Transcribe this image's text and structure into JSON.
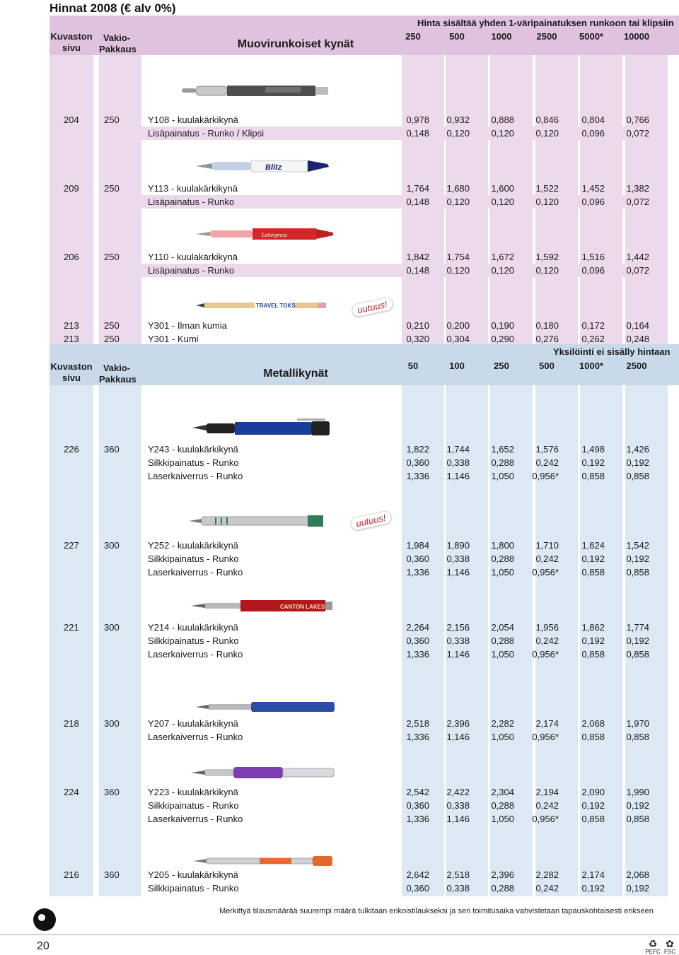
{
  "title": "Hinnat 2008 (€ alv 0%)",
  "plastic": {
    "col_page": "Kuvaston sivu",
    "col_pack_1": "Vakio-",
    "col_pack_2": "Pakkaus",
    "section_title": "Muovirunkoiset kynät",
    "note": "Hinta sisältää yhden 1-väripainatuksen runkoon tai klipsiin",
    "quantities": [
      "250",
      "500",
      "1000",
      "2500",
      "5000*",
      "10000"
    ]
  },
  "plastic_rows": [
    {
      "page": "204",
      "pack": "250",
      "desc": "Y108 - kuulakärkikynä",
      "values": [
        "0,978",
        "0,932",
        "0,888",
        "0,846",
        "0,804",
        "0,766"
      ]
    },
    {
      "page": "",
      "pack": "",
      "desc": "Lisäpainatus - Runko / Klipsi",
      "values": [
        "0,148",
        "0,120",
        "0,120",
        "0,120",
        "0,096",
        "0,072"
      ]
    },
    {
      "page": "209",
      "pack": "250",
      "desc": "Y113 - kuulakärkikynä",
      "values": [
        "1,764",
        "1,680",
        "1,600",
        "1,522",
        "1,452",
        "1,382"
      ]
    },
    {
      "page": "",
      "pack": "",
      "desc": "Lisäpainatus - Runko",
      "values": [
        "0,148",
        "0,120",
        "0,120",
        "0,120",
        "0,096",
        "0,072"
      ]
    },
    {
      "page": "206",
      "pack": "250",
      "desc": "Y110 - kuulakärkikynä",
      "values": [
        "1,842",
        "1,754",
        "1,672",
        "1,592",
        "1,516",
        "1,442"
      ]
    },
    {
      "page": "",
      "pack": "",
      "desc": "Lisäpainatus - Runko",
      "values": [
        "0,148",
        "0,120",
        "0,120",
        "0,120",
        "0,096",
        "0,072"
      ]
    },
    {
      "page": "213",
      "pack": "250",
      "desc": "Y301 - Ilman kumia",
      "values": [
        "0,210",
        "0,200",
        "0,190",
        "0,180",
        "0,172",
        "0,164"
      ]
    },
    {
      "page": "213",
      "pack": "250",
      "desc": "Y301 - Kumi",
      "values": [
        "0,320",
        "0,304",
        "0,290",
        "0,276",
        "0,262",
        "0,248"
      ]
    }
  ],
  "metal": {
    "col_page": "Kuvaston sivu",
    "col_pack_1": "Vakio-",
    "col_pack_2": "Pakkaus",
    "section_title": "Metallikynät",
    "note": "Yksilöinti ei sisälly hintaan",
    "quantities": [
      "50",
      "100",
      "250",
      "500",
      "1000*",
      "2500"
    ]
  },
  "metal_rows": [
    {
      "page": "226",
      "pack": "360",
      "desc": "Y243 - kuulakärkikynä",
      "values": [
        "1,822",
        "1,744",
        "1,652",
        "1,576",
        "1,498",
        "1,426"
      ]
    },
    {
      "page": "",
      "pack": "",
      "desc": "Silkkipainatus - Runko",
      "values": [
        "0,360",
        "0,338",
        "0,288",
        "0,242",
        "0,192",
        "0,192"
      ]
    },
    {
      "page": "",
      "pack": "",
      "desc": "Laserkaiverrus - Runko",
      "values": [
        "1,336",
        "1,146",
        "1,050",
        "0,956*",
        "0,858",
        "0,858"
      ]
    },
    {
      "page": "227",
      "pack": "300",
      "desc": "Y252 - kuulakärkikynä",
      "values": [
        "1,984",
        "1,890",
        "1,800",
        "1,710",
        "1,624",
        "1,542"
      ]
    },
    {
      "page": "",
      "pack": "",
      "desc": "Silkkipainatus - Runko",
      "values": [
        "0,360",
        "0,338",
        "0,288",
        "0,242",
        "0,192",
        "0,192"
      ]
    },
    {
      "page": "",
      "pack": "",
      "desc": "Laserkaiverrus - Runko",
      "values": [
        "1,336",
        "1,146",
        "1,050",
        "0,956*",
        "0,858",
        "0,858"
      ]
    },
    {
      "page": "221",
      "pack": "300",
      "desc": "Y214 - kuulakärkikynä",
      "values": [
        "2,264",
        "2,156",
        "2,054",
        "1,956",
        "1,862",
        "1,774"
      ]
    },
    {
      "page": "",
      "pack": "",
      "desc": "Silkkipainatus - Runko",
      "values": [
        "0,360",
        "0,338",
        "0,288",
        "0,242",
        "0,192",
        "0,192"
      ]
    },
    {
      "page": "",
      "pack": "",
      "desc": "Laserkaiverrus - Runko",
      "values": [
        "1,336",
        "1,146",
        "1,050",
        "0,956*",
        "0,858",
        "0,858"
      ]
    },
    {
      "page": "218",
      "pack": "300",
      "desc": "Y207 - kuulakärkikynä",
      "values": [
        "2,518",
        "2,396",
        "2,282",
        "2,174",
        "2,068",
        "1,970"
      ]
    },
    {
      "page": "",
      "pack": "",
      "desc": "Laserkaiverrus - Runko",
      "values": [
        "1,336",
        "1,146",
        "1,050",
        "0,956*",
        "0,858",
        "0,858"
      ]
    },
    {
      "page": "224",
      "pack": "360",
      "desc": "Y223 - kuulakärkikynä",
      "values": [
        "2,542",
        "2,422",
        "2,304",
        "2,194",
        "2,090",
        "1,990"
      ]
    },
    {
      "page": "",
      "pack": "",
      "desc": "Silkkipainatus - Runko",
      "values": [
        "0,360",
        "0,338",
        "0,288",
        "0,242",
        "0,192",
        "0,192"
      ]
    },
    {
      "page": "",
      "pack": "",
      "desc": "Laserkaiverrus - Runko",
      "values": [
        "1,336",
        "1,146",
        "1,050",
        "0,956*",
        "0,858",
        "0,858"
      ]
    },
    {
      "page": "216",
      "pack": "360",
      "desc": "Y205 - kuulakärkikynä",
      "values": [
        "2,642",
        "2,518",
        "2,396",
        "2,282",
        "2,174",
        "2,068"
      ]
    },
    {
      "page": "",
      "pack": "",
      "desc": "Silkkipainatus - Runko",
      "values": [
        "0,360",
        "0,338",
        "0,288",
        "0,242",
        "0,192",
        "0,192"
      ]
    }
  ],
  "badges": {
    "new_label": "uutuus!"
  },
  "pen_prints": {
    "y113": "Blitz",
    "y110": "Letterpress",
    "y301": "TRAVEL TOKS",
    "y214": "CANTON LAKES"
  },
  "footer": {
    "note": "Merkittyä tilausmäärää suurempi määrä tulkitaan erikoistilaukseksi ja sen toimitusaika vahvistetaan tapauskohtaisesti erikseen",
    "page_number": "20",
    "cert_1": "PEFC",
    "cert_2": "FSC"
  },
  "colors": {
    "plastic_header": "#dfc2de",
    "plastic_column": "#ecd9eb",
    "plastic_shade": "#ecd9eb",
    "metal_header": "#c8d9ea",
    "metal_column": "#dce8f3",
    "metal_shade": "#dce8f3"
  }
}
